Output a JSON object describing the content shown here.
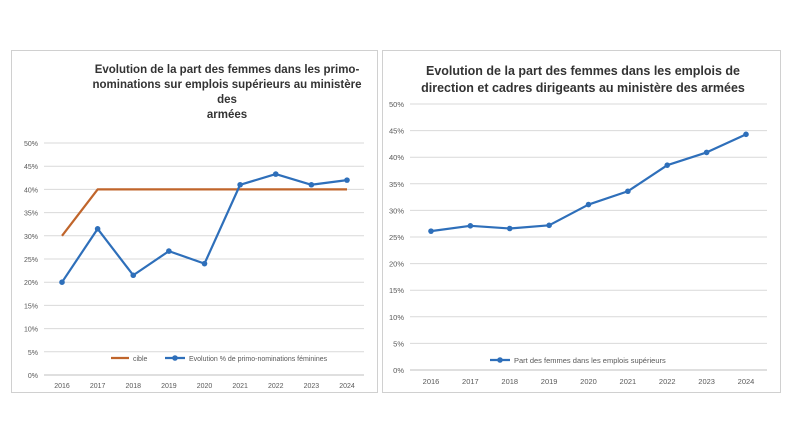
{
  "chart_data": [
    {
      "type": "line",
      "title": "Evolution de la part des femmes dans les primo-nominations sur emplois supérieurs au ministère des armées",
      "title_lines": [
        "Evolution de la part des femmes dans les primo-",
        "nominations sur emplois supérieurs au ministère des",
        "armées"
      ],
      "categories": [
        "2016",
        "2017",
        "2018",
        "2019",
        "2020",
        "2021",
        "2022",
        "2023",
        "2024"
      ],
      "ylim": [
        0,
        50
      ],
      "yticks": [
        "0%",
        "5%",
        "10%",
        "15%",
        "20%",
        "25%",
        "30%",
        "35%",
        "40%",
        "45%",
        "50%"
      ],
      "grid": true,
      "legend_position": "bottom",
      "series": [
        {
          "name": "cible",
          "color": "#C0652B",
          "markers": false,
          "values": [
            30,
            40,
            40,
            40,
            40,
            40,
            40,
            40,
            40
          ]
        },
        {
          "name": "Evolution % de primo-nominations féminines",
          "color": "#2E6FBA",
          "markers": true,
          "values": [
            20,
            31.5,
            21.5,
            26.7,
            24,
            41,
            43.3,
            41,
            42
          ]
        }
      ]
    },
    {
      "type": "line",
      "title": "Evolution de la part des femmes dans les emplois de direction et cadres dirigeants au ministère des armées",
      "title_lines": [
        "Evolution de la part des femmes dans les emplois de",
        "direction et cadres dirigeants au ministère des armées"
      ],
      "categories": [
        "2016",
        "2017",
        "2018",
        "2019",
        "2020",
        "2021",
        "2022",
        "2023",
        "2024"
      ],
      "ylim": [
        0,
        50
      ],
      "yticks": [
        "0%",
        "5%",
        "10%",
        "15%",
        "20%",
        "25%",
        "30%",
        "35%",
        "40%",
        "45%",
        "50%"
      ],
      "grid": true,
      "legend_position": "bottom",
      "series": [
        {
          "name": "Part des femmes dans les emplois supérieurs",
          "color": "#2E6FBA",
          "markers": true,
          "values": [
            26.1,
            27.1,
            26.6,
            27.2,
            31.1,
            33.6,
            38.5,
            40.9,
            44.3
          ]
        }
      ]
    }
  ]
}
